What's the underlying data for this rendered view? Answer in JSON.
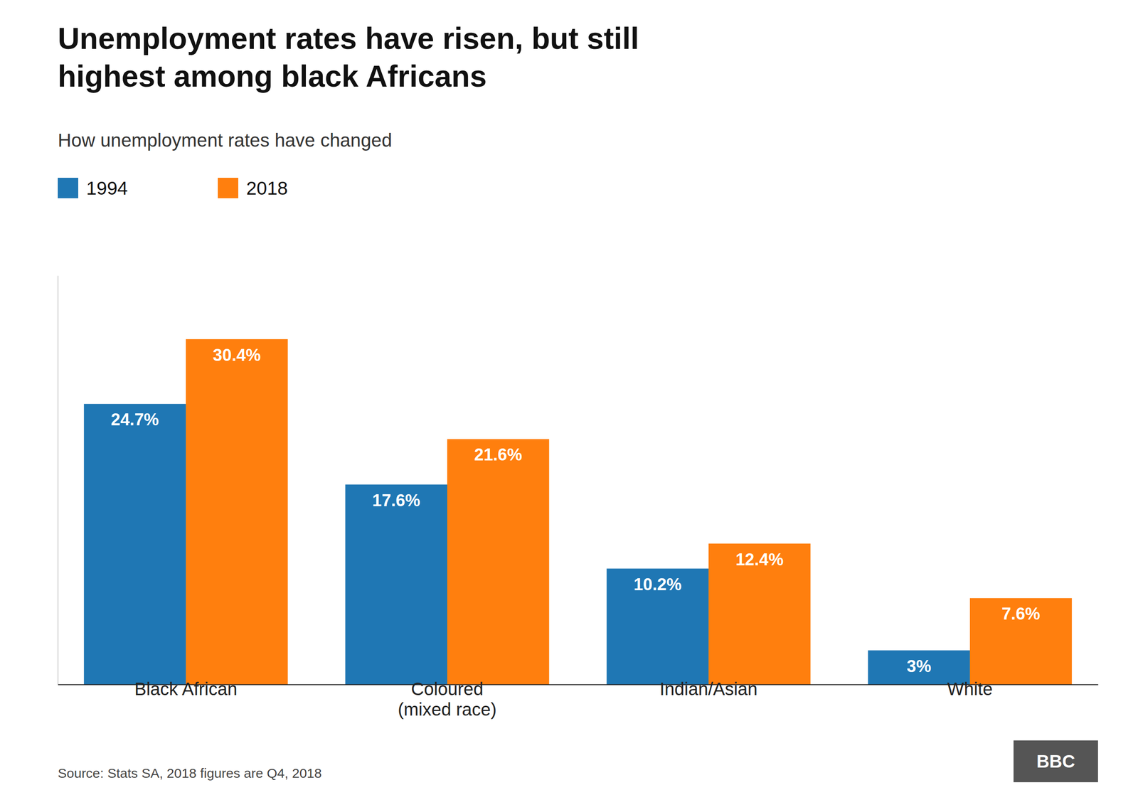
{
  "chart_data": {
    "type": "bar",
    "title": "Unemployment rates have risen, but still\nhighest among black Africans",
    "subtitle": "How unemployment rates have changed",
    "categories": [
      "Black African",
      "Coloured\n(mixed race)",
      "Indian/Asian",
      "White"
    ],
    "series": [
      {
        "name": "1994",
        "values": [
          24.7,
          17.6,
          10.2,
          3.0
        ],
        "value_labels": [
          "24.7%",
          "17.6%",
          "10.2%",
          "3%"
        ]
      },
      {
        "name": "2018",
        "values": [
          30.4,
          21.6,
          12.4,
          7.6
        ],
        "value_labels": [
          "30.4%",
          "21.6%",
          "12.4%",
          "7.6%"
        ]
      }
    ],
    "ylim": [
      0,
      36
    ],
    "data_labels": true,
    "tick_labels": "x",
    "legend": "top-left",
    "grid": false,
    "source": "Source: Stats SA, 2018 figures are Q4, 2018",
    "logo": "BBC"
  }
}
